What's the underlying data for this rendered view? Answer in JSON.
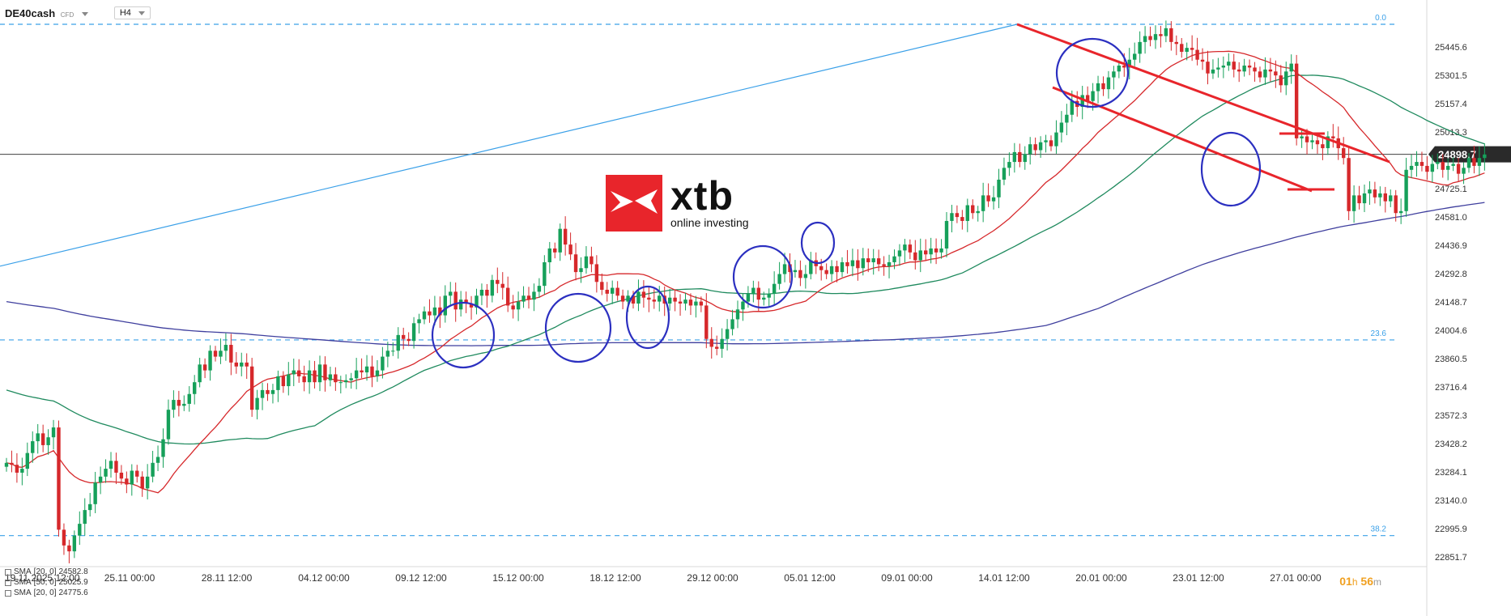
{
  "toolbar": {
    "symbol": "DE40cash",
    "instrument_type": "CFD",
    "timeframe": "H4"
  },
  "logo": {
    "word": "xtb",
    "tagline": "online investing"
  },
  "timer": {
    "hours": "01",
    "h_unit": "h",
    "minutes": "56",
    "m_unit": "m"
  },
  "legend": [
    {
      "label": "SMA",
      "params": "[20, 0]",
      "value": "24582.8",
      "color": "#3f3f9e"
    },
    {
      "label": "SMA",
      "params": "[50, 0]",
      "value": "25025.9",
      "color": "#1f8a5e"
    },
    {
      "label": "SMA",
      "params": "[20, 0]",
      "value": "24775.6",
      "color": "#d6282b"
    }
  ],
  "chart_data": {
    "type": "candlestick",
    "symbol": "DE40cash",
    "timeframe": "H4",
    "y_ticks": [
      25445.6,
      25301.5,
      25157.4,
      25013.3,
      24725.1,
      24581.0,
      24436.9,
      24292.8,
      24148.7,
      24004.6,
      23860.5,
      23716.4,
      23572.3,
      23428.2,
      23284.1,
      23140.0,
      22995.9,
      22851.7
    ],
    "ylim": [
      22820,
      25620
    ],
    "x_ticks": [
      "19.11.2025 12:00",
      "25.11 00:00",
      "28.11 12:00",
      "04.12 00:00",
      "09.12 12:00",
      "15.12 00:00",
      "18.12 12:00",
      "29.12 00:00",
      "05.01 12:00",
      "09.01 00:00",
      "14.01 12:00",
      "20.01 00:00",
      "23.01 12:00",
      "27.01 00:00"
    ],
    "current_price": {
      "value": 24898.7,
      "label": "24898.7"
    },
    "fib_levels": [
      {
        "label": "0.0",
        "value": 25560
      },
      {
        "label": "23.6",
        "value": 23955
      },
      {
        "label": "38.2",
        "value": 22960
      }
    ],
    "ohlc_close": [
      23330,
      23320,
      23280,
      23300,
      23380,
      23440,
      23480,
      23420,
      23460,
      23510,
      22990,
      22910,
      22880,
      22960,
      23020,
      23090,
      23120,
      23230,
      23260,
      23300,
      23340,
      23280,
      23250,
      23220,
      23290,
      23260,
      23200,
      23260,
      23330,
      23360,
      23450,
      23600,
      23650,
      23620,
      23630,
      23680,
      23740,
      23830,
      23800,
      23900,
      23870,
      23900,
      23930,
      23840,
      23820,
      23840,
      23820,
      23600,
      23660,
      23700,
      23680,
      23700,
      23770,
      23720,
      23780,
      23800,
      23770,
      23740,
      23800,
      23740,
      23830,
      23750,
      23780,
      23740,
      23740,
      23750,
      23760,
      23800,
      23790,
      23820,
      23770,
      23800,
      23870,
      23900,
      23900,
      23980,
      23960,
      23950,
      24040,
      24060,
      24100,
      24080,
      24120,
      24080,
      24180,
      24200,
      24110,
      24160,
      24140,
      24120,
      24180,
      24210,
      24180,
      24260,
      24240,
      24220,
      24130,
      24110,
      24150,
      24180,
      24160,
      24200,
      24230,
      24350,
      24420,
      24400,
      24520,
      24440,
      24390,
      24300,
      24320,
      24380,
      24340,
      24250,
      24210,
      24190,
      24220,
      24180,
      24150,
      24180,
      24140,
      24200,
      24170,
      24160,
      24150,
      24180,
      24140,
      24170,
      24150,
      24140,
      24160,
      24130,
      24150,
      24130,
      23960,
      23920,
      23910,
      23960,
      24010,
      24060,
      24110,
      24150,
      24190,
      24220,
      24160,
      24170,
      24190,
      24240,
      24290,
      24340,
      24300,
      24310,
      24270,
      24290,
      24360,
      24330,
      24310,
      24290,
      24330,
      24300,
      24350,
      24330,
      24360,
      24320,
      24370,
      24350,
      24370,
      24340,
      24330,
      24350,
      24380,
      24410,
      24440,
      24400,
      24360,
      24410,
      24390,
      24420,
      24400,
      24420,
      24560,
      24600,
      24580,
      24560,
      24640,
      24600,
      24610,
      24690,
      24660,
      24680,
      24770,
      24830,
      24860,
      24910,
      24860,
      24900,
      24950,
      24920,
      24960,
      24970,
      24940,
      25010,
      25060,
      25100,
      25170,
      25140,
      25200,
      25170,
      25220,
      25260,
      25230,
      25290,
      25320,
      25350,
      25340,
      25380,
      25410,
      25470,
      25500,
      25480,
      25510,
      25500,
      25540,
      25470,
      25460,
      25420,
      25440,
      25430,
      25380,
      25370,
      25310,
      25330,
      25340,
      25350,
      25370,
      25330,
      25320,
      25350,
      25340,
      25320,
      25290,
      25330,
      25320,
      25300,
      25250,
      25320,
      25360,
      24980,
      24990,
      24960,
      24970,
      24950,
      24930,
      24990,
      24980,
      24930,
      24880,
      24610,
      24690,
      24650,
      24700,
      24720,
      24680,
      24700,
      24660,
      24690,
      24600,
      24610,
      24820,
      24840,
      24860,
      24840,
      24810,
      24850,
      24860,
      24820,
      24840,
      24850,
      24800,
      24830,
      24880,
      24840,
      24880,
      24898
    ]
  }
}
